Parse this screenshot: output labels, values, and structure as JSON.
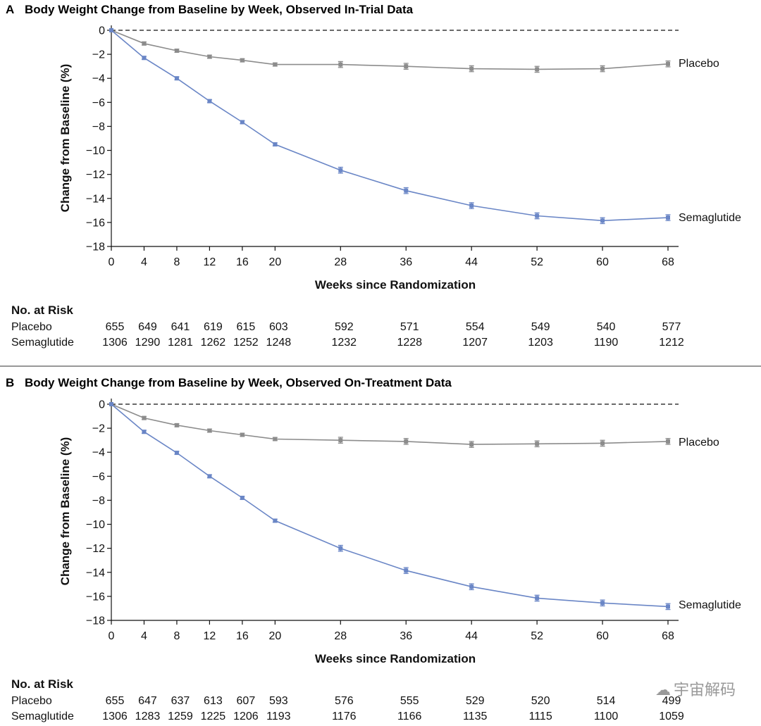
{
  "chart_data": [
    {
      "type": "line",
      "panel": "A",
      "title": "Body Weight Change from Baseline by Week, Observed In-Trial Data",
      "xlabel": "Weeks since Randomization",
      "ylabel": "Change from Baseline (%)",
      "ylim": [
        -18,
        0
      ],
      "yticks": [
        0,
        -2,
        -4,
        -6,
        -8,
        -10,
        -12,
        -14,
        -16,
        -18
      ],
      "x": [
        0,
        4,
        8,
        12,
        16,
        20,
        28,
        36,
        44,
        52,
        60,
        68
      ],
      "series": [
        {
          "name": "Placebo",
          "color": "#8c8c8c",
          "values": [
            0,
            -1.1,
            -1.7,
            -2.2,
            -2.5,
            -2.85,
            -2.85,
            -3.0,
            -3.2,
            -3.25,
            -3.2,
            -2.8
          ]
        },
        {
          "name": "Semaglutide",
          "color": "#6a86c6",
          "values": [
            0,
            -2.3,
            -4.0,
            -5.9,
            -7.65,
            -9.5,
            -11.65,
            -13.35,
            -14.6,
            -15.45,
            -15.85,
            -15.6
          ]
        }
      ],
      "risk": {
        "heading": "No. at Risk",
        "rows": [
          {
            "label": "Placebo",
            "values": [
              "655",
              "649",
              "641",
              "619",
              "615",
              "603",
              "592",
              "571",
              "554",
              "549",
              "540",
              "577"
            ]
          },
          {
            "label": "Semaglutide",
            "values": [
              "1306",
              "1290",
              "1281",
              "1262",
              "1252",
              "1248",
              "1232",
              "1228",
              "1207",
              "1203",
              "1190",
              "1212"
            ]
          }
        ]
      }
    },
    {
      "type": "line",
      "panel": "B",
      "title": "Body Weight Change from Baseline by Week, Observed On-Treatment Data",
      "xlabel": "Weeks since Randomization",
      "ylabel": "Change from Baseline (%)",
      "ylim": [
        -18,
        0
      ],
      "yticks": [
        0,
        -2,
        -4,
        -6,
        -8,
        -10,
        -12,
        -14,
        -16,
        -18
      ],
      "x": [
        0,
        4,
        8,
        12,
        16,
        20,
        28,
        36,
        44,
        52,
        60,
        68
      ],
      "series": [
        {
          "name": "Placebo",
          "color": "#8c8c8c",
          "values": [
            0,
            -1.15,
            -1.75,
            -2.2,
            -2.55,
            -2.9,
            -3.0,
            -3.1,
            -3.35,
            -3.3,
            -3.25,
            -3.1
          ]
        },
        {
          "name": "Semaglutide",
          "color": "#6a86c6",
          "values": [
            0,
            -2.3,
            -4.05,
            -6.0,
            -7.8,
            -9.7,
            -12.0,
            -13.85,
            -15.2,
            -16.15,
            -16.55,
            -16.85
          ]
        }
      ],
      "risk": {
        "heading": "No. at Risk",
        "rows": [
          {
            "label": "Placebo",
            "values": [
              "655",
              "647",
              "637",
              "613",
              "607",
              "593",
              "576",
              "555",
              "529",
              "520",
              "514",
              "499"
            ]
          },
          {
            "label": "Semaglutide",
            "values": [
              "1306",
              "1283",
              "1259",
              "1225",
              "1206",
              "1193",
              "1176",
              "1166",
              "1135",
              "1115",
              "1100",
              "1059"
            ]
          }
        ]
      }
    }
  ],
  "watermark": {
    "text": "宇宙解码",
    "icon": "wechat-icon"
  }
}
